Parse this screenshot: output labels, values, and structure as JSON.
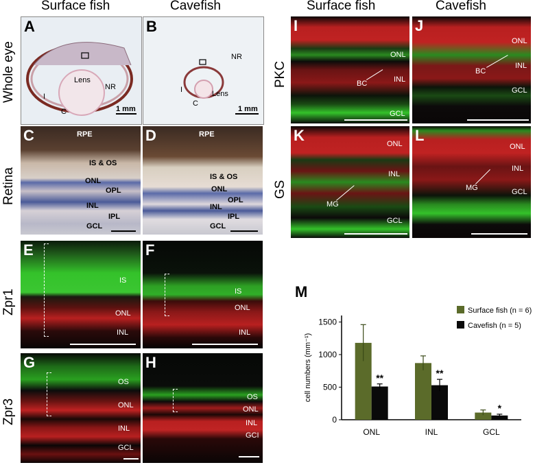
{
  "column_headers": {
    "left_surface": "Surface fish",
    "left_cave": "Cavefish",
    "right_surface": "Surface fish",
    "right_cave": "Cavefish"
  },
  "row_labels": {
    "whole_eye": "Whole eye",
    "retina": "Retina",
    "zpr1": "Zpr1",
    "zpr3": "Zpr3",
    "pkc": "PKC",
    "gs": "GS"
  },
  "panels": {
    "A": {
      "letter": "A",
      "labels": [
        "Lens",
        "NR",
        "I",
        "C"
      ],
      "scale": "1 mm"
    },
    "B": {
      "letter": "B",
      "labels": [
        "NR",
        "I",
        "C",
        "Lens"
      ],
      "scale": "1 mm"
    },
    "C": {
      "letter": "C",
      "labels": [
        "RPE",
        "IS & OS",
        "ONL",
        "OPL",
        "INL",
        "IPL",
        "GCL"
      ]
    },
    "D": {
      "letter": "D",
      "labels": [
        "RPE",
        "IS & OS",
        "ONL",
        "OPL",
        "INL",
        "IPL",
        "GCL"
      ]
    },
    "E": {
      "letter": "E",
      "labels": [
        "IS",
        "ONL",
        "INL"
      ]
    },
    "F": {
      "letter": "F",
      "labels": [
        "IS",
        "ONL",
        "INL"
      ]
    },
    "G": {
      "letter": "G",
      "labels": [
        "OS",
        "ONL",
        "INL",
        "GCL"
      ]
    },
    "H": {
      "letter": "H",
      "labels": [
        "OS",
        "ONL",
        "INL",
        "GCI"
      ]
    },
    "I": {
      "letter": "I",
      "labels": [
        "ONL",
        "BC",
        "INL",
        "GCL"
      ]
    },
    "J": {
      "letter": "J",
      "labels": [
        "ONL",
        "BC",
        "INL",
        "GCL"
      ]
    },
    "K": {
      "letter": "K",
      "labels": [
        "ONL",
        "INL",
        "MG",
        "GCL"
      ]
    },
    "L": {
      "letter": "L",
      "labels": [
        "ONL",
        "INL",
        "MG",
        "GCL"
      ]
    },
    "M": {
      "letter": "M"
    }
  },
  "colors": {
    "surface_bar": "#5b6b2a",
    "cave_bar": "#0a0a0a",
    "fluor_green": "#34c22a",
    "fluor_red": "#d9222a"
  },
  "chart_data": {
    "type": "bar",
    "categories": [
      "ONL",
      "INL",
      "GCL"
    ],
    "series": [
      {
        "name": "Surface fish (n = 6)",
        "values": [
          1180,
          870,
          110
        ],
        "errors": [
          280,
          110,
          40
        ]
      },
      {
        "name": "Cavefish (n = 5)",
        "values": [
          510,
          530,
          65
        ],
        "errors": [
          40,
          90,
          20
        ]
      }
    ],
    "significance": [
      "**",
      "**",
      "*"
    ],
    "ylabel": "cell numbers  (mm⁻¹)",
    "xlabel": "",
    "yticks": [
      0,
      500,
      1000,
      1500
    ],
    "ylim": [
      0,
      1600
    ],
    "legend_position": "top-right",
    "grid": false
  }
}
